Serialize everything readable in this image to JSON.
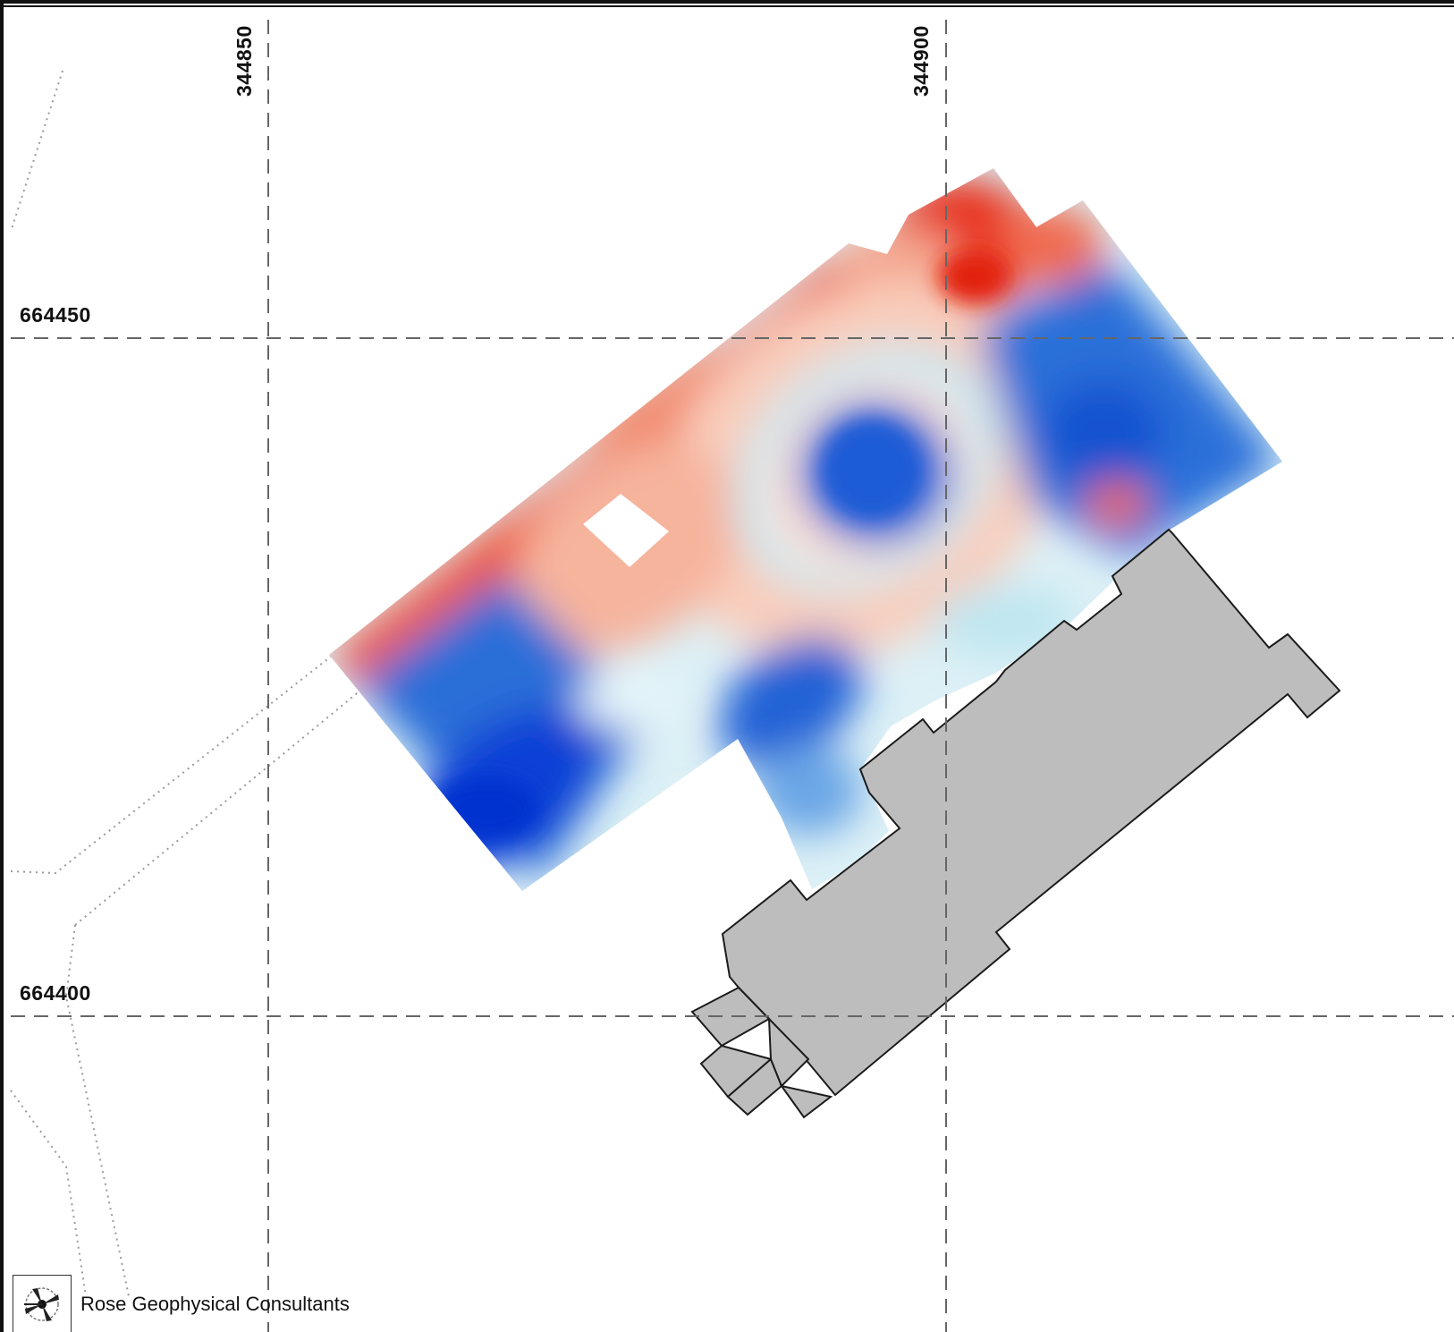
{
  "grid": {
    "eastings": [
      {
        "label": "344850"
      },
      {
        "label": "344900"
      }
    ],
    "northings": [
      {
        "label": "664450"
      },
      {
        "label": "664400"
      }
    ]
  },
  "legend_colors": {
    "high": "#e8301e",
    "mid_high": "#f7c2ad",
    "neutral": "#ffffff",
    "mid_low": "#bfe6f0",
    "low": "#0a3fd6"
  },
  "building_fill": "#bdbdbd",
  "credit": {
    "logo_icon": "compass-rose-icon",
    "text": "Rose Geophysical Consultants"
  }
}
